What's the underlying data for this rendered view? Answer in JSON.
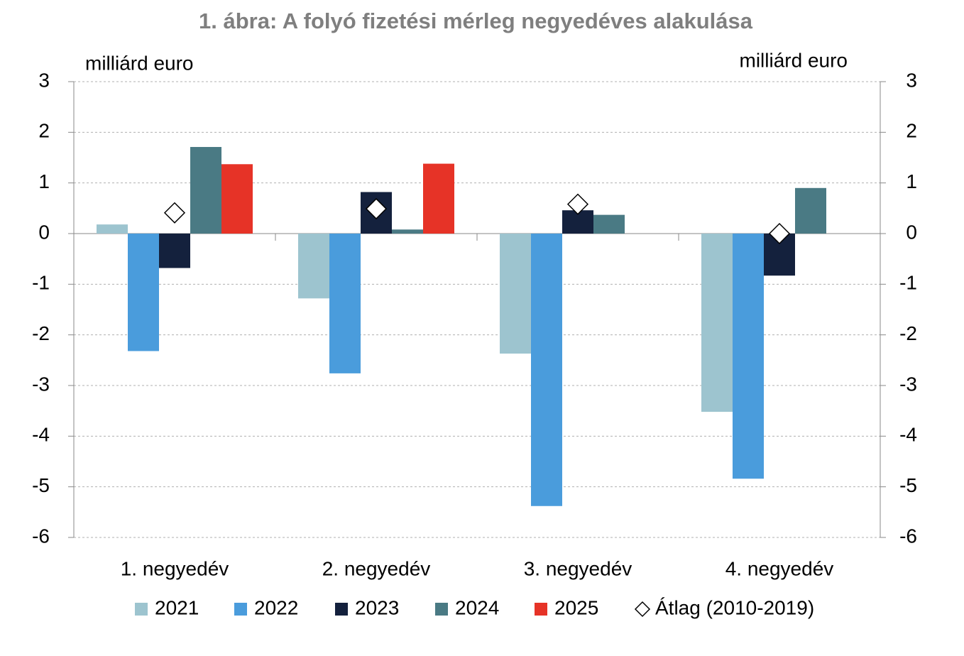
{
  "chart_data": {
    "type": "bar",
    "title": "1. ábra: A folyó fizetési mérleg negyedéves alakulása",
    "y_label": "milliárd euro",
    "y2_label": "milliárd euro",
    "categories": [
      "1. negyedév",
      "2. negyedév",
      "3. negyedév",
      "4. negyedév"
    ],
    "series": [
      {
        "name": "2021",
        "color": "#9dc4cf",
        "values": [
          0.18,
          -1.28,
          -2.37,
          -3.52
        ]
      },
      {
        "name": "2022",
        "color": "#4a9cdc",
        "values": [
          -2.32,
          -2.76,
          -5.38,
          -4.84
        ]
      },
      {
        "name": "2023",
        "color": "#14213d",
        "values": [
          -0.68,
          0.82,
          0.46,
          -0.83
        ]
      },
      {
        "name": "2024",
        "color": "#4a7a84",
        "values": [
          1.71,
          0.08,
          0.37,
          0.9
        ]
      },
      {
        "name": "2025",
        "color": "#e63327",
        "values": [
          1.37,
          1.38,
          null,
          null
        ]
      },
      {
        "name": "Átlag (2010-2019)",
        "type": "marker",
        "color": "#ffffff",
        "values": [
          0.41,
          0.49,
          0.58,
          0.0
        ]
      }
    ],
    "ylim": [
      -6,
      3
    ],
    "yticks": [
      3,
      2,
      1,
      0,
      -1,
      -2,
      -3,
      -4,
      -5,
      -6
    ],
    "y2lim": [
      -6,
      3
    ],
    "y2ticks": [
      3,
      2,
      1,
      0,
      -1,
      -2,
      -3,
      -4,
      -5,
      -6
    ],
    "grid": true,
    "legend": "bottom"
  }
}
